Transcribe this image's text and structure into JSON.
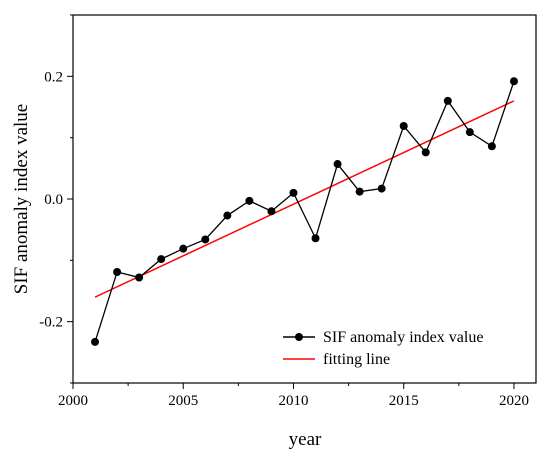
{
  "chart_data": {
    "type": "line",
    "title": "",
    "xlabel": "year",
    "ylabel": "SIF anomaly index value",
    "xlim": [
      2000,
      2021
    ],
    "ylim": [
      -0.3,
      0.3
    ],
    "xticks": [
      2000,
      2005,
      2010,
      2015,
      2020
    ],
    "xtick_labels": [
      "2000",
      "2005",
      "2010",
      "2015",
      "2020"
    ],
    "yticks": [
      -0.2,
      0.0,
      0.2
    ],
    "ytick_labels": [
      "-0.2",
      "0.0",
      "0.2"
    ],
    "grid": false,
    "legend_position": "bottom-right",
    "series": [
      {
        "name": "SIF anomaly index value",
        "color": "#000000",
        "marker": "circle",
        "x": [
          2001,
          2002,
          2003,
          2004,
          2005,
          2006,
          2007,
          2008,
          2009,
          2010,
          2011,
          2012,
          2013,
          2014,
          2015,
          2016,
          2017,
          2018,
          2019,
          2020
        ],
        "y": [
          -0.233,
          -0.119,
          -0.128,
          -0.098,
          -0.081,
          -0.066,
          -0.027,
          -0.003,
          -0.02,
          0.01,
          -0.064,
          0.057,
          0.012,
          0.017,
          0.119,
          0.076,
          0.16,
          0.109,
          0.086,
          0.192
        ]
      },
      {
        "name": "fitting line",
        "color": "#ff0000",
        "marker": "none",
        "x": [
          2001,
          2020
        ],
        "y": [
          -0.16,
          0.16
        ]
      }
    ]
  }
}
